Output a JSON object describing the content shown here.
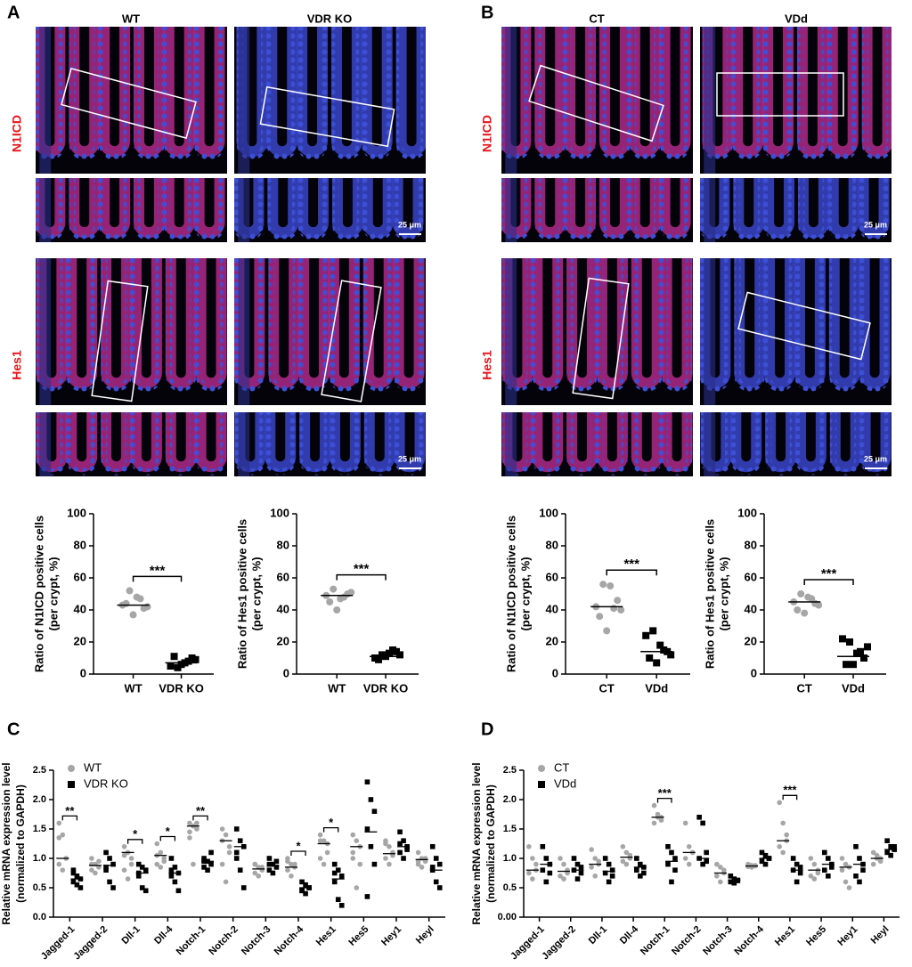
{
  "panels": [
    {
      "letter": "A",
      "columns": [
        "WT",
        "VDR KO"
      ],
      "rows": [
        "N1ICD",
        "Hes1"
      ],
      "scale_bar": "25 μm"
    },
    {
      "letter": "B",
      "columns": [
        "CT",
        "VDd"
      ],
      "rows": [
        "N1ICD",
        "Hes1"
      ],
      "scale_bar": "25 μm"
    },
    {
      "letter": "C"
    },
    {
      "letter": "D"
    }
  ],
  "chart_data": [
    {
      "type": "scatter",
      "ylabel": [
        "Ratio of N1ICD positive cells",
        "(per crypt, %)"
      ],
      "categories": [
        "WT",
        "VDR KO"
      ],
      "colors": [
        "#a6a6a6",
        "#000000"
      ],
      "markers": [
        "circle",
        "square"
      ],
      "values": [
        [
          43,
          52,
          48,
          41,
          44,
          37,
          47,
          42
        ],
        [
          5,
          4,
          7,
          10,
          11,
          6,
          8,
          9
        ]
      ],
      "means": [
        43,
        7
      ],
      "significance": "***",
      "ylim": [
        0,
        100
      ],
      "yticks": [
        0,
        20,
        40,
        60,
        80,
        100
      ]
    },
    {
      "type": "scatter",
      "ylabel": [
        "Ratio of Hes1 positive cells",
        "(per crypt, %)"
      ],
      "categories": [
        "WT",
        "VDR KO"
      ],
      "colors": [
        "#a6a6a6",
        "#000000"
      ],
      "markers": [
        "circle",
        "square"
      ],
      "values": [
        [
          49,
          53,
          47,
          50,
          45,
          40,
          48,
          51
        ],
        [
          10,
          12,
          13,
          14,
          9,
          11,
          15,
          12
        ]
      ],
      "means": [
        49,
        11
      ],
      "significance": "***",
      "ylim": [
        0,
        100
      ],
      "yticks": [
        0,
        20,
        40,
        60,
        80,
        100
      ]
    },
    {
      "type": "scatter",
      "ylabel": [
        "Ratio of N1ICD positive cells",
        "(per crypt, %)"
      ],
      "categories": [
        "CT",
        "VDd"
      ],
      "colors": [
        "#a6a6a6",
        "#000000"
      ],
      "markers": [
        "circle",
        "square"
      ],
      "values": [
        [
          42,
          56,
          55,
          46,
          36,
          27,
          41,
          40
        ],
        [
          24,
          27,
          18,
          14,
          10,
          7,
          15,
          12
        ]
      ],
      "means": [
        42,
        14
      ],
      "significance": "***",
      "ylim": [
        0,
        100
      ],
      "yticks": [
        0,
        20,
        40,
        60,
        80,
        100
      ]
    },
    {
      "type": "scatter",
      "ylabel": [
        "Ratio of Hes1 positive cells",
        "(per crypt, %)"
      ],
      "categories": [
        "CT",
        "VDd"
      ],
      "colors": [
        "#a6a6a6",
        "#000000"
      ],
      "markers": [
        "circle",
        "square"
      ],
      "values": [
        [
          45,
          50,
          48,
          44,
          40,
          38,
          47,
          43
        ],
        [
          22,
          20,
          13,
          10,
          6,
          6,
          14,
          17
        ]
      ],
      "means": [
        45,
        11
      ],
      "significance": "***",
      "ylim": [
        0,
        100
      ],
      "yticks": [
        0,
        20,
        40,
        60,
        80,
        100
      ]
    },
    {
      "type": "grouped-scatter",
      "ylabel": [
        "Relative mRNA expression level",
        "(normalized to GAPDH)"
      ],
      "categories": [
        "Jagged-1",
        "Jagged-2",
        "Dll-1",
        "Dll-4",
        "Notch-1",
        "Notch-2",
        "Notch-3",
        "Notch-4",
        "Hes1",
        "Hes5",
        "Hey1",
        "Heyl"
      ],
      "series": [
        {
          "name": "WT",
          "color": "#a6a6a6",
          "marker": "circle",
          "values": [
            [
              1.6,
              1.4,
              1.0,
              0.9,
              0.8,
              1.0,
              1.35
            ],
            [
              1.0,
              0.9,
              0.85,
              0.8,
              0.75,
              0.95,
              0.9
            ],
            [
              1.2,
              1.1,
              1.0,
              0.8,
              0.65,
              0.9,
              1.05
            ],
            [
              1.25,
              1.1,
              1.0,
              0.9,
              0.85,
              0.95,
              1.05
            ],
            [
              1.6,
              1.55,
              1.5,
              1.45,
              0.9,
              1.6,
              1.35
            ],
            [
              1.5,
              1.4,
              1.2,
              0.9,
              0.6,
              1.1,
              1.3
            ],
            [
              0.9,
              0.85,
              0.8,
              0.75,
              0.7,
              0.85,
              0.9
            ],
            [
              1.0,
              0.9,
              0.85,
              0.8,
              0.7,
              0.9,
              0.95
            ],
            [
              1.4,
              1.3,
              1.25,
              1.0,
              0.9,
              1.1,
              1.3
            ],
            [
              1.4,
              1.3,
              1.2,
              1.0,
              0.5,
              0.9,
              1.1
            ],
            [
              1.3,
              1.2,
              1.1,
              1.0,
              0.9,
              1.05,
              1.25
            ],
            [
              1.1,
              1.0,
              0.95,
              0.9,
              0.85,
              1.0,
              0.95
            ]
          ],
          "means": [
            1.0,
            0.88,
            1.1,
            1.05,
            1.55,
            1.3,
            0.82,
            0.85,
            1.25,
            1.2,
            1.08,
            0.98
          ]
        },
        {
          "name": "VDR KO",
          "color": "#000000",
          "marker": "square",
          "values": [
            [
              0.8,
              0.7,
              0.65,
              0.6,
              0.55,
              0.5,
              0.75
            ],
            [
              1.1,
              1.0,
              0.9,
              0.8,
              0.6,
              0.5,
              0.85
            ],
            [
              0.9,
              0.85,
              0.8,
              0.7,
              0.5,
              0.45,
              0.75
            ],
            [
              1.0,
              0.85,
              0.75,
              0.7,
              0.6,
              0.45,
              0.8
            ],
            [
              1.0,
              0.95,
              0.9,
              0.85,
              0.8,
              1.1,
              0.95
            ],
            [
              1.5,
              1.3,
              1.2,
              1.0,
              0.8,
              0.5,
              1.1
            ],
            [
              1.0,
              0.9,
              0.85,
              0.8,
              0.75,
              0.95,
              0.9
            ],
            [
              0.6,
              0.55,
              0.5,
              0.45,
              0.4,
              0.5,
              0.45
            ],
            [
              0.9,
              0.8,
              0.7,
              0.6,
              0.3,
              0.2,
              0.75
            ],
            [
              2.3,
              2.0,
              1.8,
              1.5,
              1.2,
              0.9,
              0.35
            ],
            [
              1.45,
              1.3,
              1.2,
              1.1,
              1.0,
              1.15,
              1.25
            ],
            [
              1.2,
              1.0,
              0.9,
              0.8,
              0.6,
              0.5,
              0.85
            ]
          ],
          "means": [
            0.65,
            0.88,
            0.75,
            0.75,
            0.95,
            1.2,
            0.87,
            0.5,
            0.65,
            1.45,
            1.2,
            0.8
          ]
        }
      ],
      "significance": [
        "**",
        null,
        "*",
        "*",
        "**",
        null,
        null,
        "*",
        "*",
        null,
        null,
        null
      ],
      "ylim": [
        0,
        2.5
      ],
      "yticks": [
        {
          "value": 0,
          "label": "0.0"
        },
        0.5,
        {
          "value": 1,
          "label": "1.0"
        },
        1.5,
        {
          "value": 2,
          "label": "2.0"
        },
        2.5
      ],
      "legend": "upper-left"
    },
    {
      "type": "grouped-scatter",
      "ylabel": [
        "Relative mRNA expression level",
        "(normalized to GAPDH)"
      ],
      "categories": [
        "Jagged-1",
        "Jagged-2",
        "Dll-1",
        "Dll-4",
        "Notch-1",
        "Notch-2",
        "Notch-3",
        "Notch-4",
        "Hes1",
        "Hes5",
        "Hey1",
        "Heyl"
      ],
      "series": [
        {
          "name": "CT",
          "color": "#a6a6a6",
          "marker": "circle",
          "values": [
            [
              1.2,
              1.0,
              0.8,
              0.75,
              0.65,
              0.9
            ],
            [
              1.0,
              0.9,
              0.8,
              0.7,
              0.65,
              0.75
            ],
            [
              1.15,
              1.0,
              0.9,
              0.85,
              0.7,
              0.95
            ],
            [
              1.2,
              1.1,
              1.0,
              0.95,
              0.9,
              1.05
            ],
            [
              1.9,
              1.7,
              1.65,
              1.6,
              1.75,
              1.7
            ],
            [
              1.6,
              1.2,
              1.1,
              1.0,
              0.9,
              1.1
            ],
            [
              0.9,
              0.85,
              0.8,
              0.7,
              0.6,
              0.75
            ],
            [
              0.9,
              0.88,
              0.87,
              0.86,
              0.85,
              0.88
            ],
            [
              1.95,
              1.6,
              1.4,
              1.2,
              1.1,
              1.3
            ],
            [
              1.0,
              0.9,
              0.8,
              0.7,
              0.65,
              0.75
            ],
            [
              1.0,
              0.9,
              0.85,
              0.8,
              0.6,
              0.5
            ],
            [
              1.1,
              1.0,
              0.95,
              0.9,
              1.05,
              1.0
            ]
          ],
          "means": [
            0.8,
            0.78,
            0.9,
            1.02,
            1.7,
            1.1,
            0.75,
            0.87,
            1.3,
            0.8,
            0.85,
            1.0
          ]
        },
        {
          "name": "VDd",
          "color": "#000000",
          "marker": "square",
          "values": [
            [
              1.2,
              1.0,
              0.9,
              0.8,
              0.6,
              0.75
            ],
            [
              1.0,
              0.9,
              0.85,
              0.8,
              0.65,
              0.75
            ],
            [
              1.0,
              0.9,
              0.8,
              0.75,
              0.6,
              0.7
            ],
            [
              1.0,
              0.9,
              0.85,
              0.8,
              0.7,
              0.75
            ],
            [
              1.2,
              1.1,
              1.0,
              0.9,
              0.6,
              0.8
            ],
            [
              1.7,
              1.6,
              1.1,
              1.0,
              0.9,
              0.95
            ],
            [
              0.7,
              0.65,
              0.62,
              0.6,
              0.58,
              0.63
            ],
            [
              1.1,
              1.05,
              1.0,
              0.95,
              0.9,
              1.0
            ],
            [
              1.0,
              0.9,
              0.85,
              0.8,
              0.6,
              0.75
            ],
            [
              1.1,
              1.0,
              0.9,
              0.8,
              0.7,
              0.85
            ],
            [
              1.2,
              1.0,
              0.9,
              0.7,
              0.6,
              0.8
            ],
            [
              1.3,
              1.2,
              1.15,
              1.1,
              1.05,
              1.2
            ]
          ],
          "means": [
            0.9,
            0.8,
            0.78,
            0.85,
            0.95,
            1.0,
            0.63,
            1.0,
            0.8,
            0.9,
            0.9,
            1.15
          ]
        }
      ],
      "significance": [
        null,
        null,
        null,
        null,
        "***",
        null,
        null,
        null,
        "***",
        null,
        null,
        null
      ],
      "ylim": [
        0,
        2.5
      ],
      "yticks": [
        {
          "value": 0,
          "label": "0.00"
        },
        0.5,
        {
          "value": 1,
          "label": "1.0"
        },
        1.5,
        {
          "value": 2,
          "label": "2.0"
        },
        2.5
      ],
      "legend": "upper-left"
    }
  ]
}
